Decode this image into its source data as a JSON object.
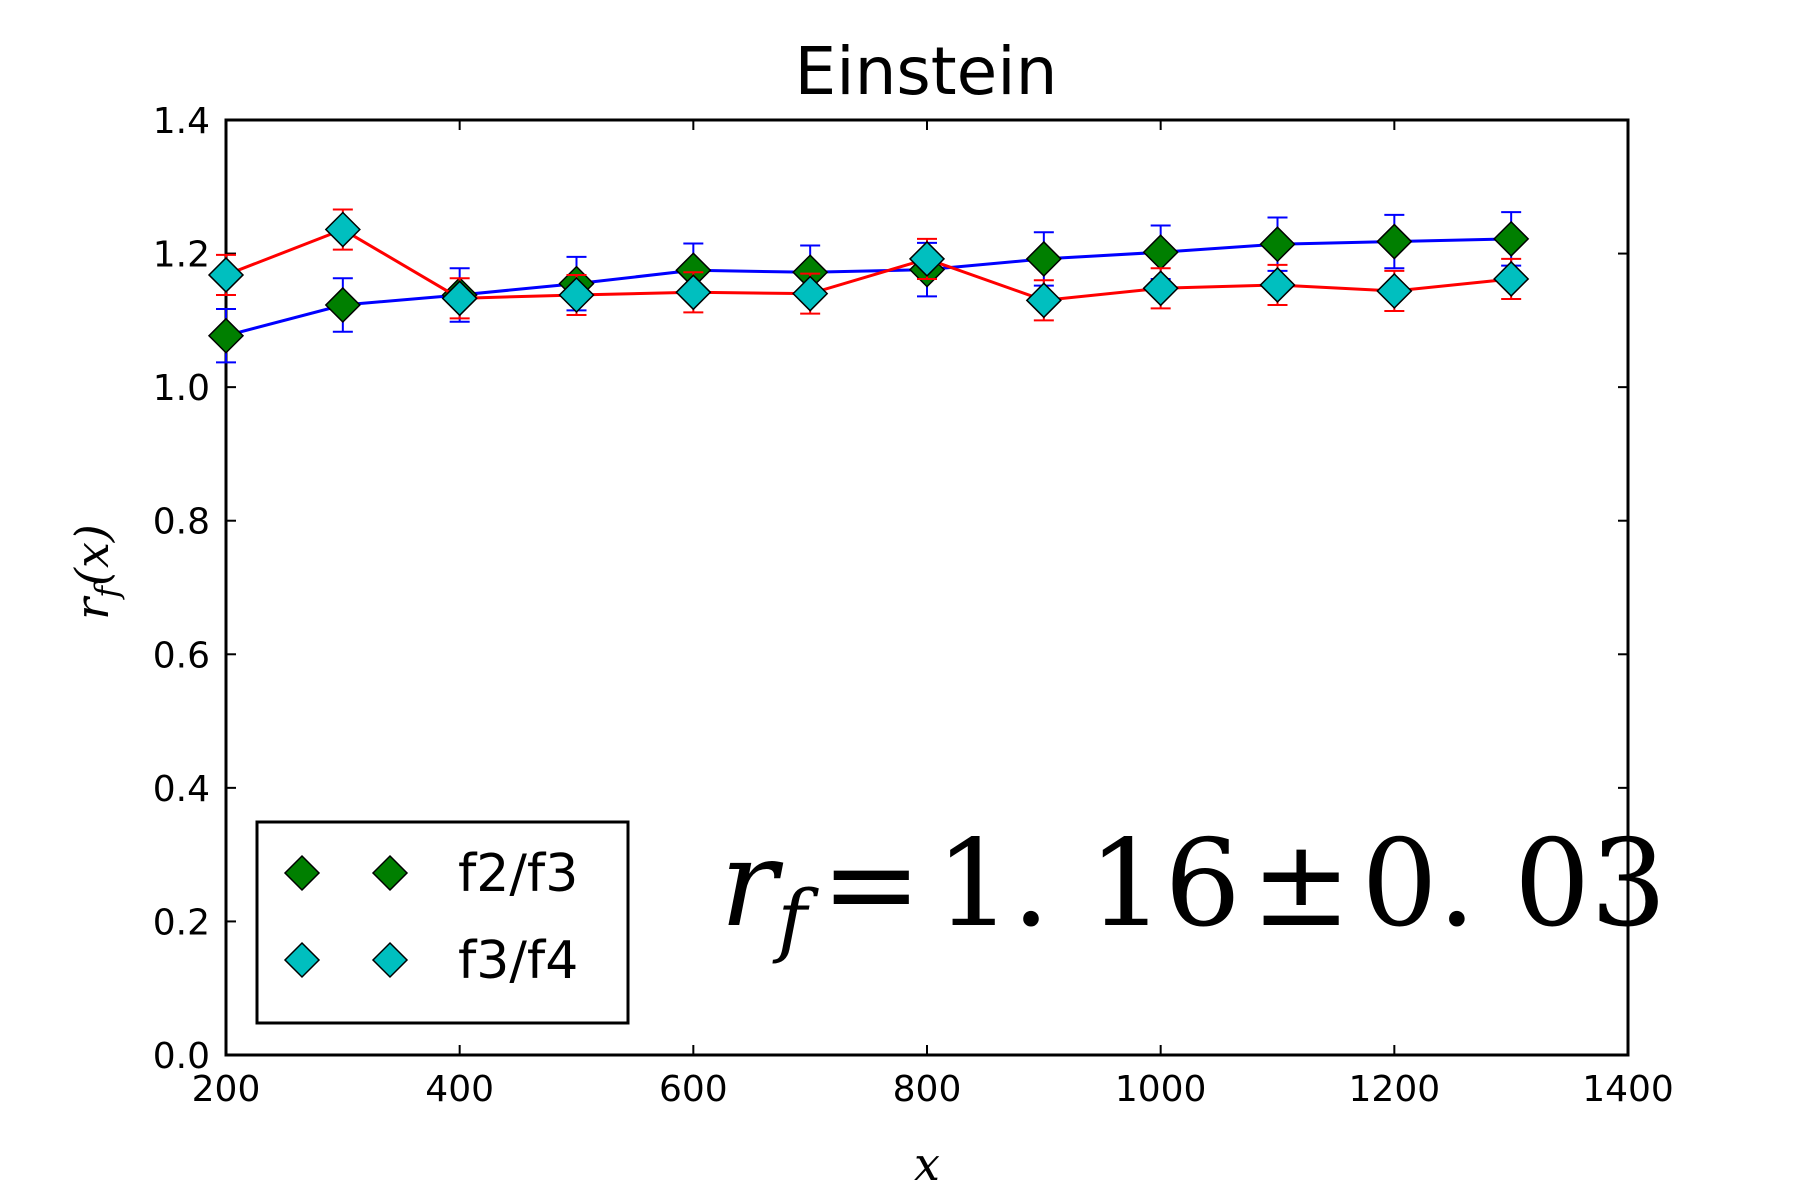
{
  "chart_data": {
    "type": "line",
    "title": "Einstein",
    "xlabel": "x",
    "ylabel": "r_f(x)",
    "xlim": [
      200,
      1400
    ],
    "ylim": [
      0.0,
      1.4
    ],
    "xticks": [
      "200",
      "400",
      "600",
      "800",
      "1000",
      "1200",
      "1400"
    ],
    "yticks": [
      "0.0",
      "0.2",
      "0.4",
      "0.6",
      "0.8",
      "1.0",
      "1.2",
      "1.4"
    ],
    "grid": false,
    "legend_position": "lower-left",
    "x": [
      200,
      300,
      400,
      500,
      600,
      700,
      800,
      900,
      1000,
      1100,
      1200,
      1300
    ],
    "series": [
      {
        "name": "f2/f3",
        "line_color": "#0000ff",
        "marker_color": "#007f00",
        "values": [
          1.077,
          1.123,
          1.138,
          1.155,
          1.175,
          1.172,
          1.176,
          1.192,
          1.202,
          1.214,
          1.218,
          1.222
        ],
        "errors": [
          0.04,
          0.04,
          0.04,
          0.04,
          0.04,
          0.04,
          0.04,
          0.04,
          0.04,
          0.04,
          0.04,
          0.04
        ]
      },
      {
        "name": "f3/f4",
        "line_color": "#ff0000",
        "marker_color": "#00bfbf",
        "values": [
          1.168,
          1.236,
          1.133,
          1.138,
          1.142,
          1.14,
          1.192,
          1.13,
          1.148,
          1.153,
          1.144,
          1.162
        ],
        "errors": [
          0.03,
          0.03,
          0.03,
          0.03,
          0.03,
          0.03,
          0.03,
          0.03,
          0.03,
          0.03,
          0.03,
          0.03
        ]
      }
    ],
    "annotation": {
      "lhs": "r",
      "subscript": "f",
      "equals": "=",
      "value": "1. 16",
      "pm": "±",
      "error": "0. 03"
    }
  }
}
